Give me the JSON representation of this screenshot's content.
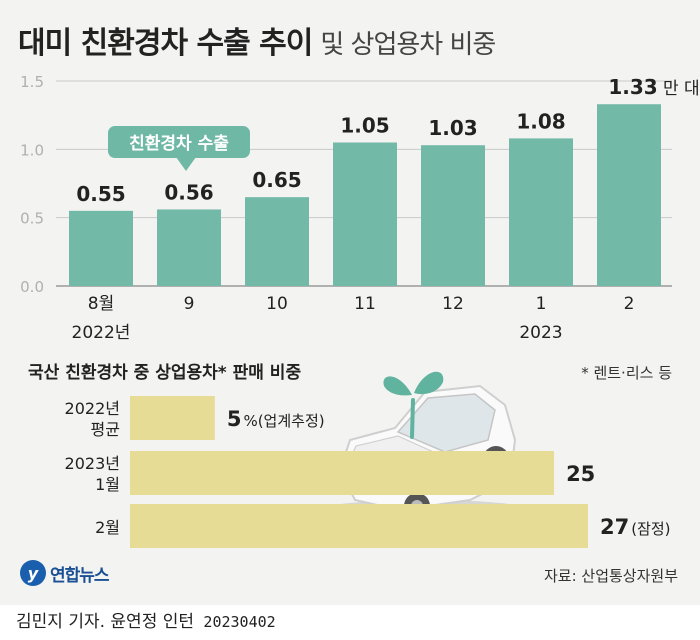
{
  "title": {
    "main": "대미 친환경차 수출 추이",
    "sub": "및 상업용차 비중"
  },
  "chart_data": [
    {
      "type": "bar",
      "unit": "만 대",
      "ylim": [
        0,
        1.5
      ],
      "yticks": [
        "0.0",
        "0.5",
        "1.0",
        "1.5"
      ],
      "grid": true,
      "categories": [
        "8월",
        "9",
        "10",
        "11",
        "12",
        "1",
        "2"
      ],
      "year_labels": [
        "2022년",
        "2023"
      ],
      "values": [
        0.55,
        0.56,
        0.65,
        1.05,
        1.03,
        1.08,
        1.33
      ],
      "value_labels": [
        "0.55",
        "0.56",
        "0.65",
        "1.05",
        "1.03",
        "1.08",
        "1.33"
      ],
      "callout": "친환경차 수출",
      "bar_color": "#72b9a8"
    },
    {
      "type": "bar",
      "orientation": "horizontal",
      "title": "국산 친환경차 중 상업용차* 판매 비중",
      "footnote": "* 렌트·리스 등",
      "unit": "%",
      "categories": [
        [
          "2022년",
          "평균"
        ],
        [
          "2023년",
          "1월"
        ],
        [
          "2월"
        ]
      ],
      "values": [
        5,
        25,
        27
      ],
      "value_labels": [
        "5",
        "25",
        "27"
      ],
      "value_suffixes": [
        "%(업계추정)",
        "",
        "(잠정)"
      ],
      "bar_color": "#e6dc95"
    }
  ],
  "footer": {
    "logo": "연합뉴스",
    "source": "자료: 산업통상자원부",
    "byline": "김민지 기자. 윤연정 인턴",
    "date": "20230402"
  },
  "colors": {
    "bar": "#72b9a8",
    "share_bar": "#e6dc95",
    "callout": "#6fb8a6",
    "panel": "#f3f3f1",
    "sprout": "#5fb39f"
  }
}
